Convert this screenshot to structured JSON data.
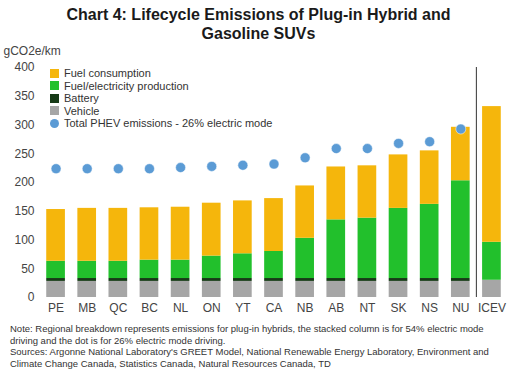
{
  "chart_data": {
    "type": "bar",
    "title": "Chart 4: Lifecycle Emissions of Plug-in Hybrid and Gasoline SUVs",
    "y_label": "gCO2e/km",
    "note": "Note: Regional breakdown represents emissions for plug-in hybrids, the stacked column is for 54% electric mode driving and the dot is for 26% electric mode driving.",
    "source": "Sources: Argonne National Laboratory's GREET Model, National Renewable Energy Laboratory, Environment and Climate Change Canada, Statistics Canada, Natural Resources Canada, TD",
    "categories": [
      "PE",
      "MB",
      "QC",
      "BC",
      "NL",
      "ON",
      "YT",
      "CA",
      "NB",
      "AB",
      "NT",
      "SK",
      "NS",
      "NU",
      "ICEV"
    ],
    "stacked": true,
    "legend": "top-left",
    "grid": false,
    "ylim": [
      0,
      400
    ],
    "yticks": [
      0,
      50,
      100,
      150,
      200,
      250,
      300,
      350,
      400
    ],
    "series": [
      {
        "name": "Fuel consumption",
        "type": "bar",
        "color": "#f5b60c",
        "values": [
          90,
          92,
          92,
          91,
          92,
          92,
          92,
          92,
          91,
          92,
          91,
          93,
          93,
          93,
          236
        ]
      },
      {
        "name": "Fuel/electricity production",
        "type": "bar",
        "color": "#22c02c",
        "values": [
          30,
          30,
          30,
          32,
          32,
          39,
          43,
          47,
          70,
          102,
          105,
          122,
          129,
          170,
          66
        ]
      },
      {
        "name": "Battery",
        "type": "bar",
        "color": "#163a16",
        "values": [
          5,
          5,
          5,
          5,
          5,
          5,
          5,
          5,
          5,
          5,
          5,
          5,
          5,
          5,
          0
        ]
      },
      {
        "name": "Vehicle",
        "type": "bar",
        "color": "#a6a6a6",
        "values": [
          28,
          28,
          28,
          28,
          28,
          28,
          28,
          28,
          28,
          28,
          28,
          28,
          28,
          28,
          30
        ]
      },
      {
        "name": "Total PHEV emissions - 26% electric mode",
        "type": "scatter",
        "marker": "circle",
        "color": "#5b9bd5",
        "values": [
          224,
          224,
          224,
          224,
          226,
          228,
          230,
          232,
          243,
          259,
          259,
          268,
          271,
          293,
          null
        ]
      }
    ]
  }
}
